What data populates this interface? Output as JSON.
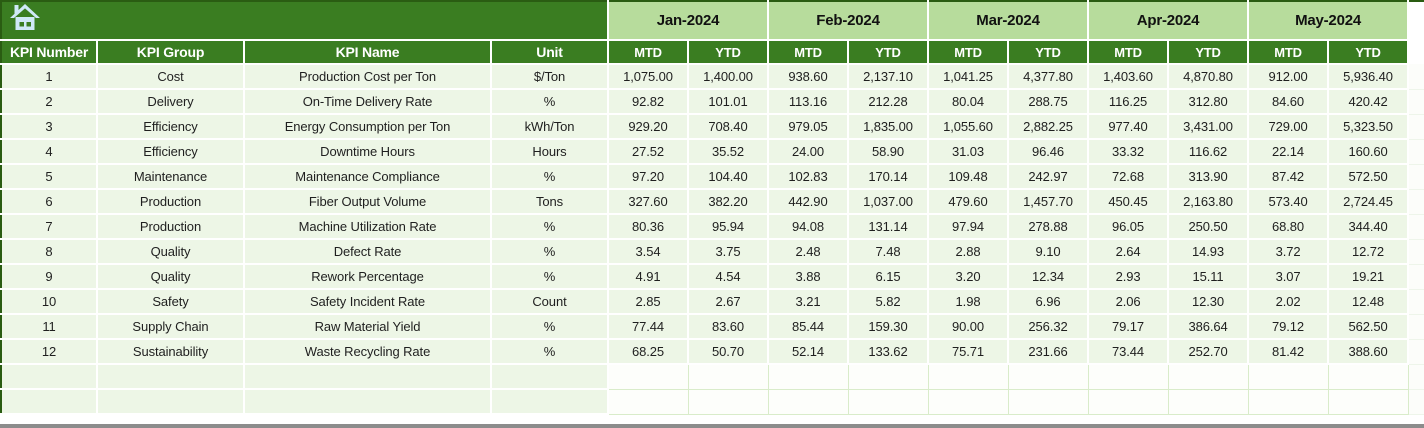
{
  "header": {
    "months": [
      "Jan-2024",
      "Feb-2024",
      "Mar-2024",
      "Apr-2024",
      "May-2024"
    ],
    "sub_headers": [
      "MTD",
      "YTD",
      "MTD",
      "YTD",
      "MTD",
      "YTD",
      "MTD",
      "YTD",
      "MTD",
      "YTD"
    ],
    "left_headers": [
      "KPI Number",
      "KPI Group",
      "KPI Name",
      "Unit"
    ],
    "home_icon": "home-icon"
  },
  "rows": [
    {
      "number": "1",
      "group": "Cost",
      "name": "Production Cost per Ton",
      "unit": "$/Ton",
      "values": [
        "1,075.00",
        "1,400.00",
        "938.60",
        "2,137.10",
        "1,041.25",
        "4,377.80",
        "1,403.60",
        "4,870.80",
        "912.00",
        "5,936.40"
      ]
    },
    {
      "number": "2",
      "group": "Delivery",
      "name": "On-Time Delivery Rate",
      "unit": "%",
      "values": [
        "92.82",
        "101.01",
        "113.16",
        "212.28",
        "80.04",
        "288.75",
        "116.25",
        "312.80",
        "84.60",
        "420.42"
      ]
    },
    {
      "number": "3",
      "group": "Efficiency",
      "name": "Energy Consumption per Ton",
      "unit": "kWh/Ton",
      "values": [
        "929.20",
        "708.40",
        "979.05",
        "1,835.00",
        "1,055.60",
        "2,882.25",
        "977.40",
        "3,431.00",
        "729.00",
        "5,323.50"
      ]
    },
    {
      "number": "4",
      "group": "Efficiency",
      "name": "Downtime Hours",
      "unit": "Hours",
      "values": [
        "27.52",
        "35.52",
        "24.00",
        "58.90",
        "31.03",
        "96.46",
        "33.32",
        "116.62",
        "22.14",
        "160.60"
      ]
    },
    {
      "number": "5",
      "group": "Maintenance",
      "name": "Maintenance Compliance",
      "unit": "%",
      "values": [
        "97.20",
        "104.40",
        "102.83",
        "170.14",
        "109.48",
        "242.97",
        "72.68",
        "313.90",
        "87.42",
        "572.50"
      ]
    },
    {
      "number": "6",
      "group": "Production",
      "name": "Fiber Output Volume",
      "unit": "Tons",
      "values": [
        "327.60",
        "382.20",
        "442.90",
        "1,037.00",
        "479.60",
        "1,457.70",
        "450.45",
        "2,163.80",
        "573.40",
        "2,724.45"
      ]
    },
    {
      "number": "7",
      "group": "Production",
      "name": "Machine Utilization Rate",
      "unit": "%",
      "values": [
        "80.36",
        "95.94",
        "94.08",
        "131.14",
        "97.94",
        "278.88",
        "96.05",
        "250.50",
        "68.80",
        "344.40"
      ]
    },
    {
      "number": "8",
      "group": "Quality",
      "name": "Defect Rate",
      "unit": "%",
      "values": [
        "3.54",
        "3.75",
        "2.48",
        "7.48",
        "2.88",
        "9.10",
        "2.64",
        "14.93",
        "3.72",
        "12.72"
      ]
    },
    {
      "number": "9",
      "group": "Quality",
      "name": "Rework Percentage",
      "unit": "%",
      "values": [
        "4.91",
        "4.54",
        "3.88",
        "6.15",
        "3.20",
        "12.34",
        "2.93",
        "15.11",
        "3.07",
        "19.21"
      ]
    },
    {
      "number": "10",
      "group": "Safety",
      "name": "Safety Incident Rate",
      "unit": "Count",
      "values": [
        "2.85",
        "2.67",
        "3.21",
        "5.82",
        "1.98",
        "6.96",
        "2.06",
        "12.30",
        "2.02",
        "12.48"
      ]
    },
    {
      "number": "11",
      "group": "Supply Chain",
      "name": "Raw Material Yield",
      "unit": "%",
      "values": [
        "77.44",
        "83.60",
        "85.44",
        "159.30",
        "90.00",
        "256.32",
        "79.17",
        "386.64",
        "79.12",
        "562.50"
      ]
    },
    {
      "number": "12",
      "group": "Sustainability",
      "name": "Waste Recycling Rate",
      "unit": "%",
      "values": [
        "68.25",
        "50.70",
        "52.14",
        "133.62",
        "75.71",
        "231.66",
        "73.44",
        "252.70",
        "81.42",
        "388.60"
      ]
    }
  ],
  "empty_row_count": 2,
  "colors": {
    "header_dark_green": "#3a7d21",
    "month_band_light_green": "#b7dc9c",
    "row_light_green": "#edf6e6",
    "outer_border_green": "#2a5c12",
    "gridline_white": "#ffffff",
    "empty_cell_gridline": "#d9ecca",
    "bottom_bar_gray": "#8c8c8c",
    "home_icon_blue": "#cfe9f7",
    "header_text_white": "#ffffff",
    "data_text_black": "#1f1f1f"
  }
}
